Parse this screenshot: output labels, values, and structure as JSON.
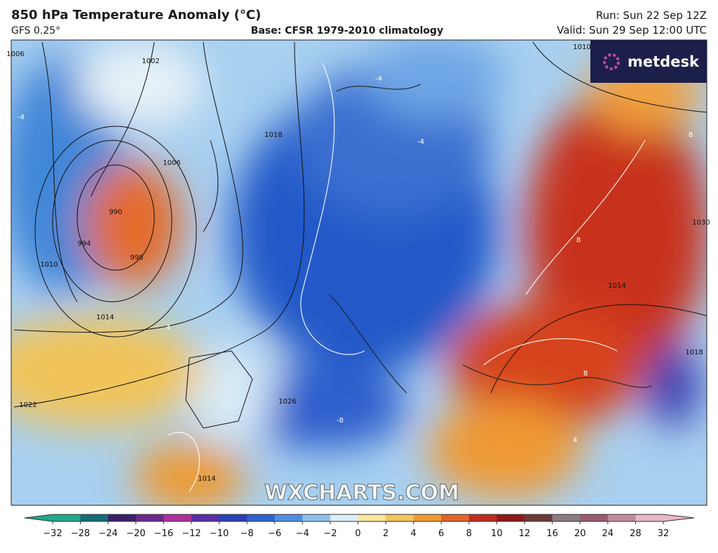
{
  "header": {
    "title": "850 hPa Temperature Anomaly (°C)",
    "model": "GFS 0.25°",
    "base": "Base: CFSR 1979-2010 climatology",
    "run": "Run: Sun 22 Sep 12Z",
    "valid": "Valid: Sun 29 Sep 12:00 UTC"
  },
  "logo": "metdesk",
  "watermark": "WXCHARTS.COM",
  "contour_labels": [
    "1006",
    "1002",
    "1018",
    "1006",
    "990",
    "994",
    "998",
    "1010",
    "1014",
    "1022",
    "1026",
    "1014",
    "1018",
    "1014",
    "1030",
    "1010",
    "-4",
    "-4",
    "-4",
    "4",
    "8",
    "8",
    "8",
    "4",
    "-8"
  ],
  "colorbar": {
    "ticks": [
      {
        "value": -32,
        "label": "−32"
      },
      {
        "value": -28,
        "label": "−28"
      },
      {
        "value": -24,
        "label": "−24"
      },
      {
        "value": -20,
        "label": "−20"
      },
      {
        "value": -16,
        "label": "−16"
      },
      {
        "value": -12,
        "label": "−12"
      },
      {
        "value": -10,
        "label": "−10"
      },
      {
        "value": -8,
        "label": "−8"
      },
      {
        "value": -6,
        "label": "−6"
      },
      {
        "value": -4,
        "label": "−4"
      },
      {
        "value": -2,
        "label": "−2"
      },
      0,
      2,
      4,
      6,
      8,
      10,
      12,
      16,
      20,
      24,
      28,
      32
    ],
    "colors": [
      "#1fa88a",
      "#146b78",
      "#3a1f6b",
      "#6a2a8f",
      "#b0309e",
      "#5a2fa6",
      "#2a40b8",
      "#2f63d0",
      "#4f8ee0",
      "#8cc0ee",
      "#dceef8",
      "#f6e6a0",
      "#f3c45a",
      "#ee9a32",
      "#e2632a",
      "#c22c1e",
      "#8e1a18",
      "#6e3a38",
      "#8a7c80",
      "#9a5a72",
      "#c48aa0",
      "#e8b8c8"
    ]
  }
}
